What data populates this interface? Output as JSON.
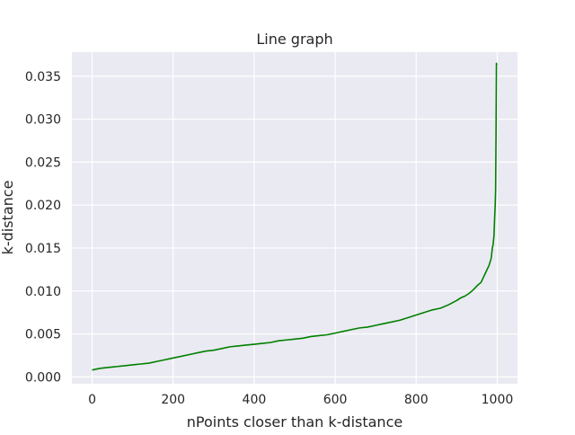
{
  "chart_data": {
    "type": "line",
    "title": "Line graph",
    "xlabel": "nPoints closer than k-distance",
    "ylabel": "k-distance",
    "xlim": [
      -50,
      1050
    ],
    "ylim": [
      -0.0008,
      0.0378
    ],
    "xticks": [
      0,
      200,
      400,
      600,
      800,
      1000
    ],
    "xtick_labels": [
      "0",
      "200",
      "400",
      "600",
      "800",
      "1000"
    ],
    "yticks": [
      0.0,
      0.005,
      0.01,
      0.015,
      0.02,
      0.025,
      0.03,
      0.035
    ],
    "ytick_labels": [
      "0.000",
      "0.005",
      "0.010",
      "0.015",
      "0.020",
      "0.025",
      "0.030",
      "0.035"
    ],
    "grid": true,
    "colors": {
      "line": "#008000",
      "plot_bg": "#eaeaf2",
      "grid": "#ffffff"
    },
    "series": [
      {
        "x": [
          0,
          20,
          40,
          60,
          80,
          100,
          120,
          140,
          160,
          180,
          200,
          220,
          240,
          260,
          280,
          300,
          320,
          340,
          360,
          380,
          400,
          420,
          440,
          460,
          480,
          500,
          520,
          540,
          560,
          580,
          600,
          620,
          640,
          660,
          680,
          700,
          720,
          740,
          760,
          780,
          800,
          820,
          840,
          860,
          880,
          900,
          910,
          920,
          930,
          940,
          950,
          960,
          965,
          970,
          975,
          980,
          985,
          988,
          990,
          992,
          994,
          995,
          996,
          997,
          998,
          999
        ],
        "y": [
          0.0008,
          0.001,
          0.0011,
          0.0012,
          0.0013,
          0.0014,
          0.0015,
          0.0016,
          0.0018,
          0.002,
          0.0022,
          0.0024,
          0.0026,
          0.0028,
          0.003,
          0.0031,
          0.0033,
          0.0035,
          0.0036,
          0.0037,
          0.0038,
          0.0039,
          0.004,
          0.0042,
          0.0043,
          0.0044,
          0.0045,
          0.0047,
          0.0048,
          0.0049,
          0.0051,
          0.0053,
          0.0055,
          0.0057,
          0.0058,
          0.006,
          0.0062,
          0.0064,
          0.0066,
          0.0069,
          0.0072,
          0.0075,
          0.0078,
          0.008,
          0.0084,
          0.0089,
          0.0092,
          0.0094,
          0.0097,
          0.0101,
          0.0106,
          0.011,
          0.0115,
          0.012,
          0.0125,
          0.013,
          0.0138,
          0.015,
          0.0155,
          0.0165,
          0.019,
          0.02,
          0.0218,
          0.028,
          0.0365,
          0.0363
        ]
      }
    ]
  }
}
